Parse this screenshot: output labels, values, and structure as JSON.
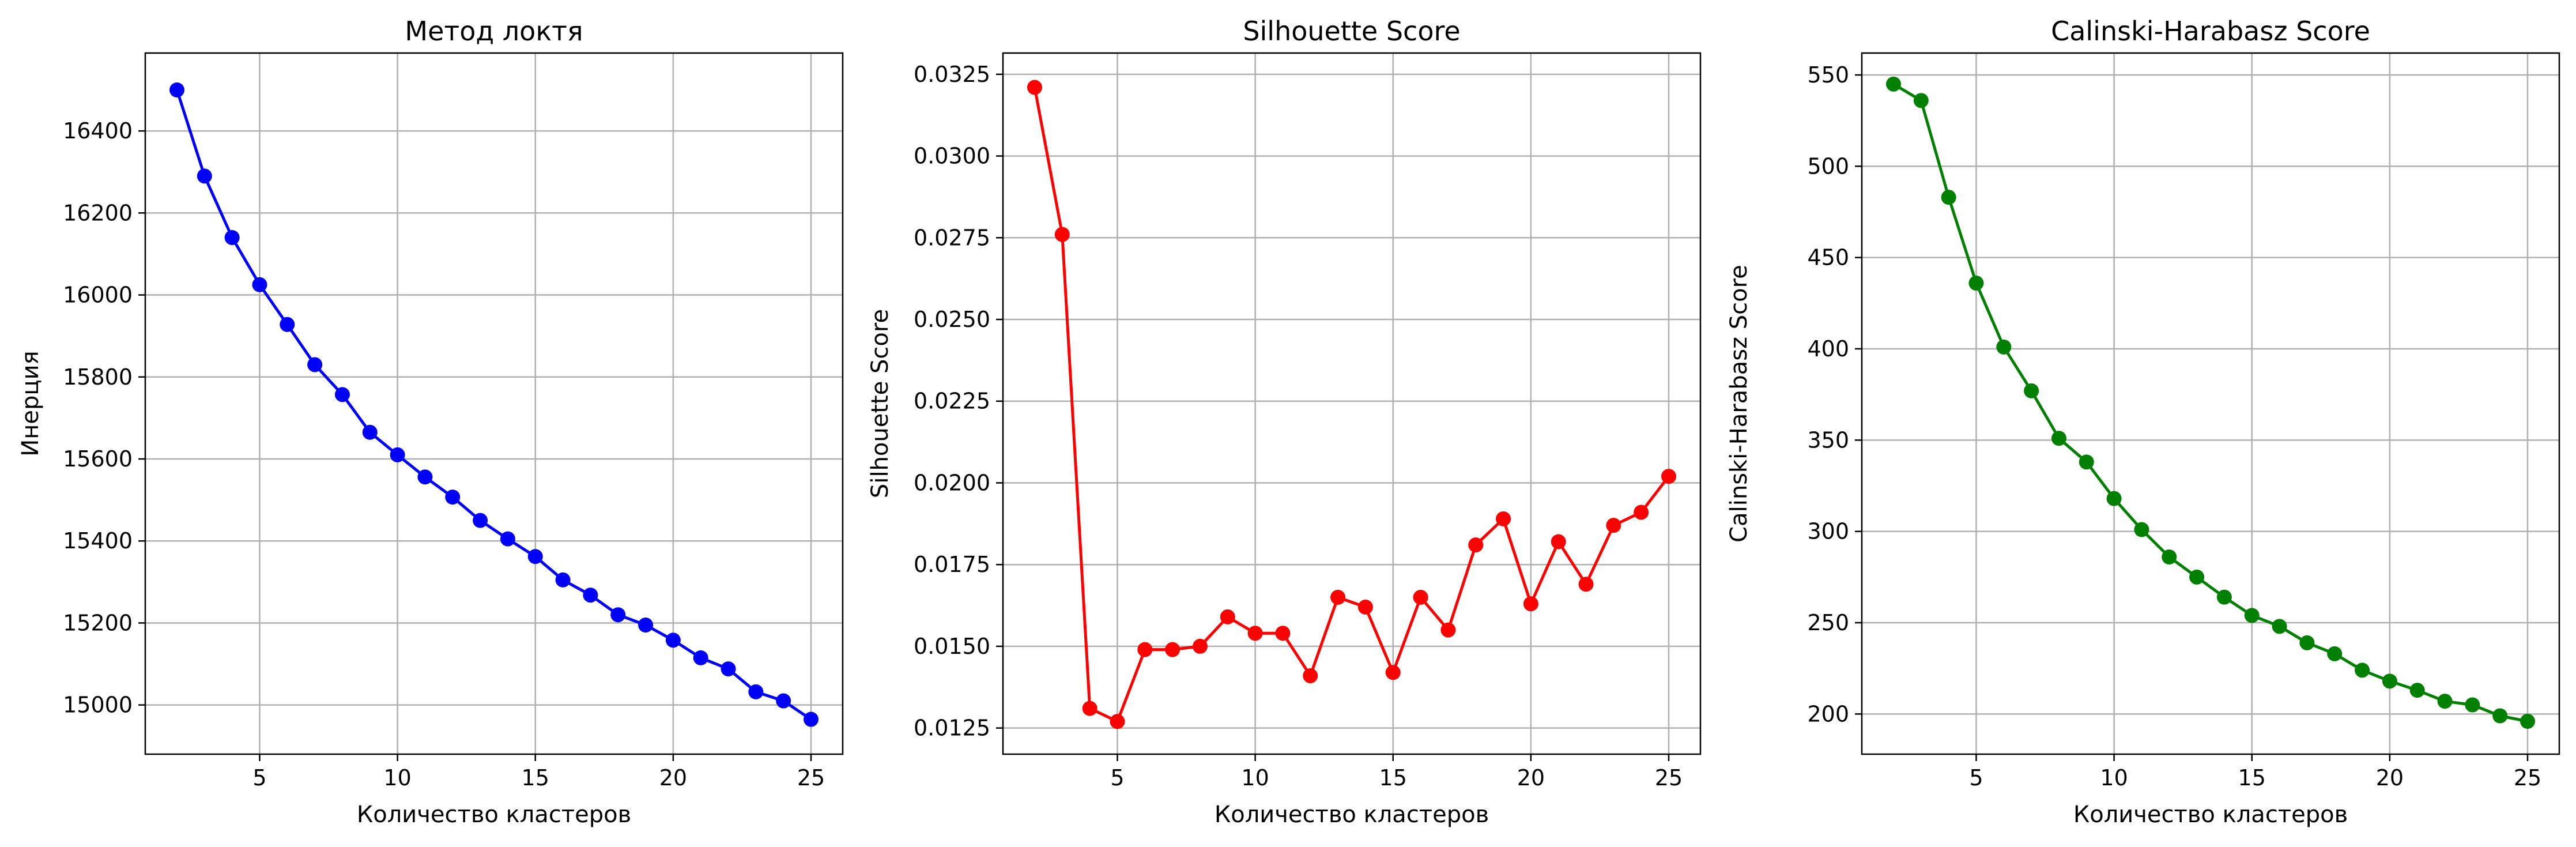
{
  "chart_data": [
    {
      "type": "line",
      "title": "Метод локтя",
      "xlabel": "Количество кластеров",
      "ylabel": "Инерция",
      "grid": true,
      "color": "#0000ff",
      "xlim": [
        0.85,
        26.15
      ],
      "ylim": [
        14880,
        16590
      ],
      "xticks": [
        5,
        10,
        15,
        20,
        25
      ],
      "xtick_labels": [
        "5",
        "10",
        "15",
        "20",
        "25"
      ],
      "yticks": [
        15000,
        15200,
        15400,
        15600,
        15800,
        16000,
        16200,
        16400
      ],
      "ytick_labels": [
        "15000",
        "15200",
        "15400",
        "15600",
        "15800",
        "16000",
        "16200",
        "16400"
      ],
      "x": [
        2,
        3,
        4,
        5,
        6,
        7,
        8,
        9,
        10,
        11,
        12,
        13,
        14,
        15,
        16,
        17,
        18,
        19,
        20,
        21,
        22,
        23,
        24,
        25
      ],
      "values": [
        16500,
        16290,
        16140,
        16025,
        15928,
        15830,
        15757,
        15665,
        15610,
        15556,
        15507,
        15450,
        15405,
        15362,
        15305,
        15268,
        15220,
        15195,
        15158,
        15115,
        15088,
        15032,
        15010,
        14965
      ]
    },
    {
      "type": "line",
      "title": "Silhouette Score",
      "xlabel": "Количество кластеров",
      "ylabel": "Silhouette Score",
      "grid": true,
      "color": "#ff0000",
      "xlim": [
        0.85,
        26.15
      ],
      "ylim": [
        0.0117,
        0.03315
      ],
      "xticks": [
        5,
        10,
        15,
        20,
        25
      ],
      "xtick_labels": [
        "5",
        "10",
        "15",
        "20",
        "25"
      ],
      "yticks": [
        0.0125,
        0.015,
        0.0175,
        0.02,
        0.0225,
        0.025,
        0.0275,
        0.03,
        0.0325
      ],
      "ytick_labels": [
        "0.0125",
        "0.0150",
        "0.0175",
        "0.0200",
        "0.0225",
        "0.0250",
        "0.0275",
        "0.0300",
        "0.0325"
      ],
      "x": [
        2,
        3,
        4,
        5,
        6,
        7,
        8,
        9,
        10,
        11,
        12,
        13,
        14,
        15,
        16,
        17,
        18,
        19,
        20,
        21,
        22,
        23,
        24,
        25
      ],
      "values": [
        0.0321,
        0.0276,
        0.0131,
        0.0127,
        0.0149,
        0.0149,
        0.015,
        0.0159,
        0.0154,
        0.0154,
        0.0141,
        0.0165,
        0.0162,
        0.0142,
        0.0165,
        0.0155,
        0.0181,
        0.0189,
        0.0163,
        0.0182,
        0.0169,
        0.0187,
        0.0191,
        0.0202
      ]
    },
    {
      "type": "line",
      "title": "Calinski-Harabasz Score",
      "xlabel": "Количество кластеров",
      "ylabel": "Calinski-Harabasz Score",
      "grid": true,
      "color": "#008000",
      "xlim": [
        0.85,
        26.15
      ],
      "ylim": [
        178,
        562
      ],
      "xticks": [
        5,
        10,
        15,
        20,
        25
      ],
      "xtick_labels": [
        "5",
        "10",
        "15",
        "20",
        "25"
      ],
      "yticks": [
        200,
        250,
        300,
        350,
        400,
        450,
        500,
        550
      ],
      "ytick_labels": [
        "200",
        "250",
        "300",
        "350",
        "400",
        "450",
        "500",
        "550"
      ],
      "x": [
        2,
        3,
        4,
        5,
        6,
        7,
        8,
        9,
        10,
        11,
        12,
        13,
        14,
        15,
        16,
        17,
        18,
        19,
        20,
        21,
        22,
        23,
        24,
        25
      ],
      "values": [
        545,
        536,
        483,
        436,
        401,
        377,
        351,
        338,
        318,
        301,
        286,
        275,
        264,
        254,
        248,
        239,
        233,
        224,
        218,
        213,
        207,
        205,
        199,
        196
      ]
    }
  ]
}
